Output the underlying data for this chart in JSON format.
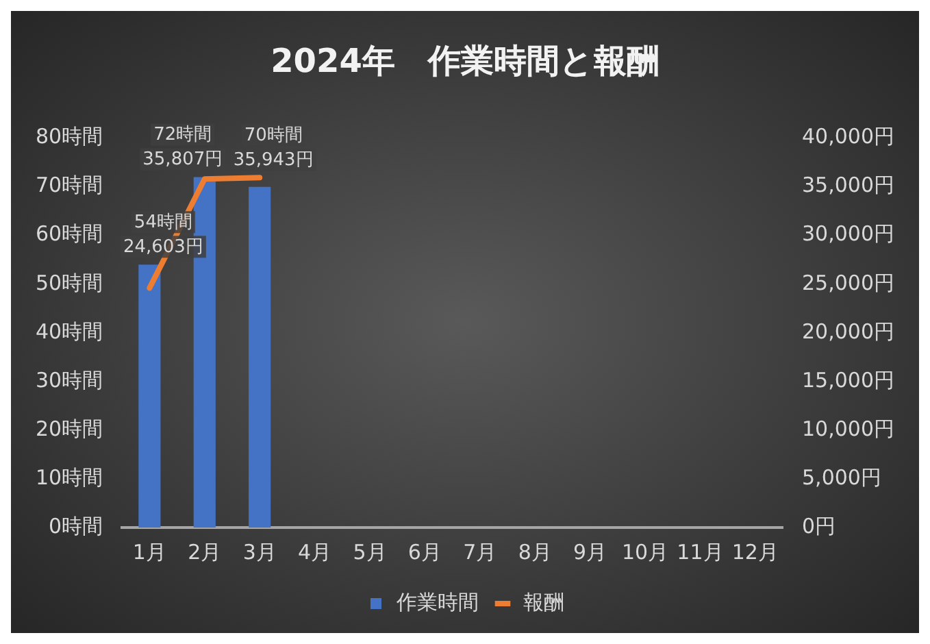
{
  "chart_data": {
    "type": "bar",
    "title": "2024年　作業時間と報酬",
    "categories": [
      "1月",
      "2月",
      "3月",
      "4月",
      "5月",
      "6月",
      "7月",
      "8月",
      "9月",
      "10月",
      "11月",
      "12月"
    ],
    "series": [
      {
        "name": "作業時間",
        "color": "#4472c4",
        "values": [
          54,
          72,
          70,
          null,
          null,
          null,
          null,
          null,
          null,
          null,
          null,
          null
        ],
        "value_labels": [
          "54時間",
          "72時間",
          "70時間",
          null,
          null,
          null,
          null,
          null,
          null,
          null,
          null,
          null
        ]
      },
      {
        "name": "報酬",
        "type": "line",
        "axis": "y2",
        "color": "#ed7d31",
        "values": [
          24603,
          35807,
          35943,
          null,
          null,
          null,
          null,
          null,
          null,
          null,
          null,
          null
        ],
        "value_labels": [
          "24,603円",
          "35,807円",
          "35,943円",
          null,
          null,
          null,
          null,
          null,
          null,
          null,
          null,
          null
        ]
      }
    ],
    "ylim": [
      0,
      80
    ],
    "yticks": [
      {
        "value": 0,
        "label": "0時間"
      },
      {
        "value": 10,
        "label": "10時間"
      },
      {
        "value": 20,
        "label": "20時間"
      },
      {
        "value": 30,
        "label": "30時間"
      },
      {
        "value": 40,
        "label": "40時間"
      },
      {
        "value": 50,
        "label": "50時間"
      },
      {
        "value": 60,
        "label": "60時間"
      },
      {
        "value": 70,
        "label": "70時間"
      },
      {
        "value": 80,
        "label": "80時間"
      }
    ],
    "y2lim": [
      0,
      40000
    ],
    "y2ticks": [
      {
        "value": 0,
        "label": "0円"
      },
      {
        "value": 5000,
        "label": "5,000円"
      },
      {
        "value": 10000,
        "label": "10,000円"
      },
      {
        "value": 15000,
        "label": "15,000円"
      },
      {
        "value": 20000,
        "label": "20,000円"
      },
      {
        "value": 25000,
        "label": "25,000円"
      },
      {
        "value": 30000,
        "label": "30,000円"
      },
      {
        "value": 35000,
        "label": "35,000円"
      },
      {
        "value": 40000,
        "label": "40,000円"
      }
    ],
    "grid": false,
    "legend": "bottom",
    "marker": "none",
    "line_style": "solid"
  }
}
